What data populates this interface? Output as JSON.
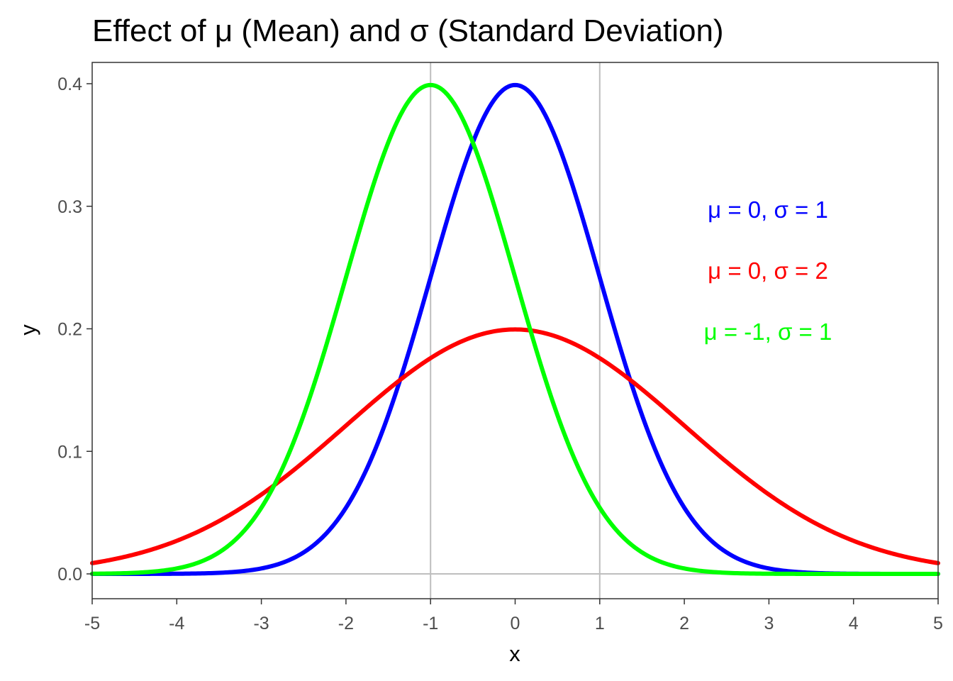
{
  "chart_data": {
    "type": "line",
    "title": "Effect of μ (Mean) and σ (Standard Deviation)",
    "xlabel": "x",
    "ylabel": "y",
    "xlim": [
      -5,
      5
    ],
    "ylim": [
      0,
      0.4
    ],
    "x_ticks": [
      -5,
      -4,
      -3,
      -2,
      -1,
      0,
      1,
      2,
      3,
      4,
      5
    ],
    "x_tick_labels": [
      "-5",
      "-4",
      "-3",
      "-2",
      "-1",
      "0",
      "1",
      "2",
      "3",
      "4",
      "5"
    ],
    "y_ticks": [
      0.0,
      0.1,
      0.2,
      0.3,
      0.4
    ],
    "y_tick_labels": [
      "0.0",
      "0.1",
      "0.2",
      "0.3",
      "0.4"
    ],
    "reference_lines": {
      "vertical": [
        -1,
        1
      ],
      "horizontal": [
        0
      ],
      "color": "#bebebe"
    },
    "x": [
      -5,
      -4.5,
      -4,
      -3.5,
      -3,
      -2.5,
      -2,
      -1.5,
      -1,
      -0.5,
      0,
      0.5,
      1,
      1.5,
      2,
      2.5,
      3,
      3.5,
      4,
      4.5,
      5
    ],
    "series": [
      {
        "label": "μ = 0, σ = 1",
        "color": "#0000ff",
        "values": [
          0.0,
          0.0,
          0.0001,
          0.0009,
          0.0044,
          0.0175,
          0.054,
          0.1295,
          0.242,
          0.3521,
          0.3989,
          0.3521,
          0.242,
          0.1295,
          0.054,
          0.0175,
          0.0044,
          0.0009,
          0.0001,
          0.0,
          0.0
        ]
      },
      {
        "label": "μ = 0, σ = 2",
        "color": "#ff0000",
        "values": [
          0.0088,
          0.0159,
          0.027,
          0.0431,
          0.0648,
          0.0913,
          0.121,
          0.1506,
          0.176,
          0.1933,
          0.1995,
          0.1933,
          0.176,
          0.1506,
          0.121,
          0.0913,
          0.0648,
          0.0431,
          0.027,
          0.0159,
          0.0088
        ]
      },
      {
        "label": "μ = -1, σ = 1",
        "color": "#00ff00",
        "values": [
          0.0001,
          0.0009,
          0.0044,
          0.0175,
          0.054,
          0.1295,
          0.242,
          0.3521,
          0.3989,
          0.3521,
          0.242,
          0.1295,
          0.054,
          0.0175,
          0.0044,
          0.0009,
          0.0001,
          0.0,
          0.0,
          0.0,
          0.0
        ]
      }
    ],
    "legend_placement": "right, inside plot"
  }
}
